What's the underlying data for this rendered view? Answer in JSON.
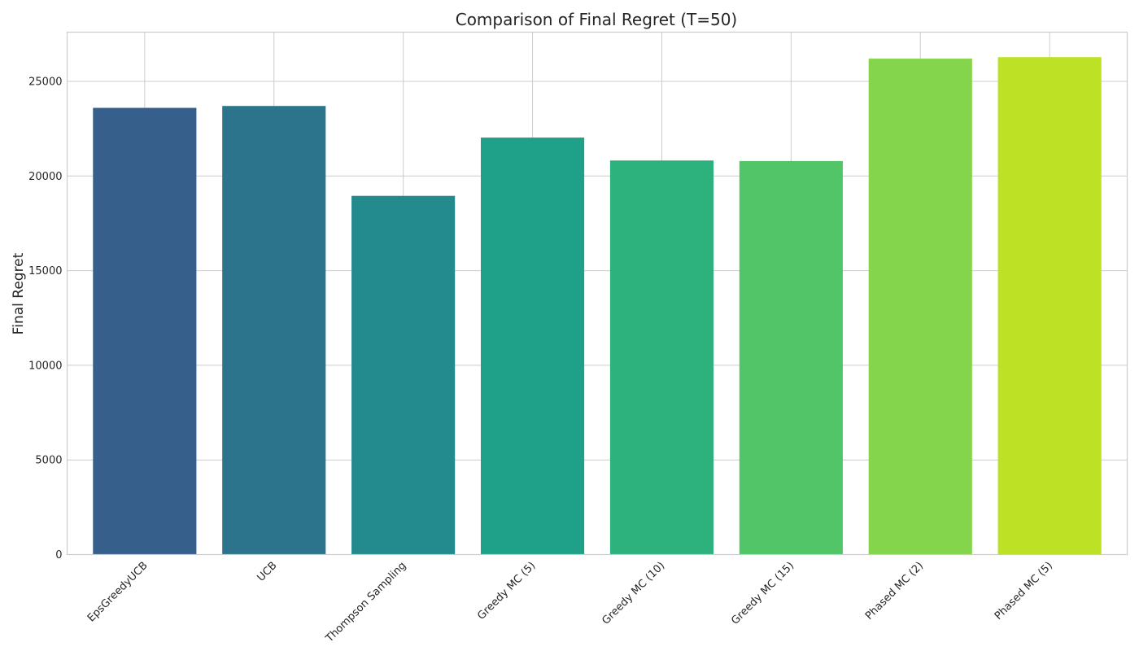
{
  "chart_data": {
    "type": "bar",
    "title": "Comparison of Final Regret (T=50)",
    "xlabel": "",
    "ylabel": "Final Regret",
    "categories": [
      "EpsGreedyUCB",
      "UCB",
      "Thompson Sampling",
      "Greedy MC (5)",
      "Greedy MC (10)",
      "Greedy MC (15)",
      "Phased MC (2)",
      "Phased MC (5)"
    ],
    "values": [
      23600,
      23700,
      18950,
      22030,
      20820,
      20790,
      26200,
      26280
    ],
    "colors": [
      "#365f8b",
      "#2b748c",
      "#238a8d",
      "#1fa189",
      "#2db27d",
      "#52c569",
      "#84d54b",
      "#bde125"
    ],
    "ylim": [
      0,
      27600
    ],
    "yticks": [
      0,
      5000,
      10000,
      15000,
      20000,
      25000
    ],
    "grid": true,
    "legend": false
  }
}
